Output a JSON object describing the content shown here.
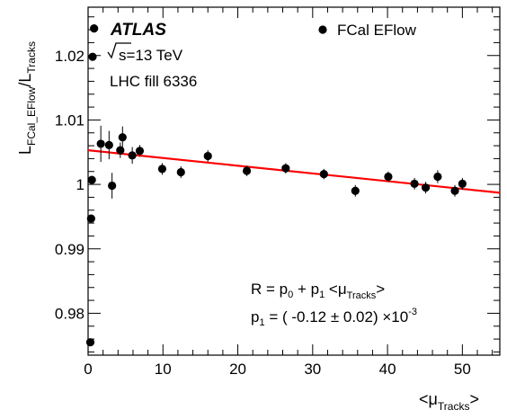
{
  "labels": {
    "experiment": "ATLAS",
    "sqrt_s": "s=13 TeV",
    "fill": "LHC fill 6336",
    "fit_formula_prefix": "R = p",
    "fit_formula_p0_sub": "0",
    "fit_formula_mid": " + p",
    "fit_formula_p1_sub": "1",
    "fit_formula_lt": " <μ",
    "fit_formula_sub": "Tracks",
    "fit_formula_gt": ">",
    "p1_prefix": "p",
    "p1_sub": "1",
    "p1_value": " = ( -0.12 ± 0.02) ×10",
    "p1_exp": "-3",
    "legend_series": "FCal EFlow",
    "ylabel_main1": "L",
    "ylabel_sub1": "FCal_EFlow",
    "ylabel_main2": "/L",
    "ylabel_sub2": "Tracks",
    "xlabel_lt": "<μ",
    "xlabel_sub": "Tracks",
    "xlabel_gt": ">"
  },
  "colors": {
    "fit_line": "#ff0000",
    "markers": "#000000"
  },
  "chart_data": {
    "type": "scatter",
    "xlim": [
      0,
      55
    ],
    "ylim": [
      0.9735,
      1.0275
    ],
    "x_ticks": [
      0,
      10,
      20,
      30,
      40,
      50
    ],
    "x_tick_labels": [
      "0",
      "10",
      "20",
      "30",
      "40",
      "50"
    ],
    "y_ticks": [
      0.98,
      0.99,
      1.0,
      1.01,
      1.02
    ],
    "y_tick_labels": [
      "0.98",
      "0.99",
      "1",
      "1.01",
      "1.02"
    ],
    "legend_position": "top-right",
    "series": [
      {
        "name": "FCal EFlow",
        "points": [
          {
            "x": 0.3,
            "y": 0.9755,
            "err": 0.0
          },
          {
            "x": 0.4,
            "y": 0.9947,
            "err": 0.0
          },
          {
            "x": 0.5,
            "y": 1.0007,
            "err": 0.0
          },
          {
            "x": 0.6,
            "y": 1.0198,
            "err": 0.0
          },
          {
            "x": 0.8,
            "y": 1.0242,
            "err": 0.0
          },
          {
            "x": 1.7,
            "y": 1.0063,
            "err": 0.0028
          },
          {
            "x": 2.8,
            "y": 1.0061,
            "err": 0.0022
          },
          {
            "x": 3.2,
            "y": 0.9998,
            "err": 0.002
          },
          {
            "x": 4.3,
            "y": 1.0053,
            "err": 0.0012
          },
          {
            "x": 4.6,
            "y": 1.0073,
            "err": 0.0017
          },
          {
            "x": 5.9,
            "y": 1.0045,
            "err": 0.0013
          },
          {
            "x": 6.9,
            "y": 1.0052,
            "err": 0.0009
          },
          {
            "x": 9.9,
            "y": 1.0024,
            "err": 0.0009
          },
          {
            "x": 12.4,
            "y": 1.0019,
            "err": 0.0009
          },
          {
            "x": 16.0,
            "y": 1.0044,
            "err": 0.0009
          },
          {
            "x": 21.2,
            "y": 1.0021,
            "err": 0.0008
          },
          {
            "x": 26.4,
            "y": 1.0025,
            "err": 0.0008
          },
          {
            "x": 31.5,
            "y": 1.0016,
            "err": 0.0008
          },
          {
            "x": 35.7,
            "y": 0.999,
            "err": 0.0009
          },
          {
            "x": 40.1,
            "y": 1.0012,
            "err": 0.0008
          },
          {
            "x": 43.6,
            "y": 1.0001,
            "err": 0.0009
          },
          {
            "x": 45.1,
            "y": 0.9995,
            "err": 0.0009
          },
          {
            "x": 46.7,
            "y": 1.0012,
            "err": 0.001
          },
          {
            "x": 49.0,
            "y": 0.999,
            "err": 0.0009
          },
          {
            "x": 50.0,
            "y": 1.0001,
            "err": 0.0009
          }
        ]
      }
    ],
    "fit": {
      "x": [
        0,
        55
      ],
      "y": [
        1.0053,
        0.9987
      ]
    }
  }
}
